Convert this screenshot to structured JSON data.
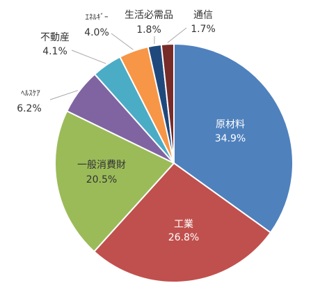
{
  "chart_data": {
    "type": "pie",
    "start": "12 o'clock",
    "direction": "clockwise",
    "slices": [
      {
        "name": "原材料",
        "value": 34.9,
        "label": "34.9%",
        "color": "#4F81BD"
      },
      {
        "name": "工業",
        "value": 26.8,
        "label": "26.8%",
        "color": "#C0504D"
      },
      {
        "name": "一般消費財",
        "value": 20.5,
        "label": "20.5%",
        "color": "#9BBB59"
      },
      {
        "name": "ﾍﾙｽｹｱ",
        "value": 6.2,
        "label": "6.2%",
        "color": "#8064A2"
      },
      {
        "name": "不動産",
        "value": 4.1,
        "label": "4.1%",
        "color": "#4BACC6"
      },
      {
        "name": "ｴﾈﾙｷﾞｰ",
        "value": 4.0,
        "label": "4.0%",
        "color": "#F79646"
      },
      {
        "name": "生活必需品",
        "value": 1.8,
        "label": "1.8%",
        "color": "#1F497D"
      },
      {
        "name": "通信",
        "value": 1.7,
        "label": "1.7%",
        "color": "#772C2A"
      }
    ]
  }
}
